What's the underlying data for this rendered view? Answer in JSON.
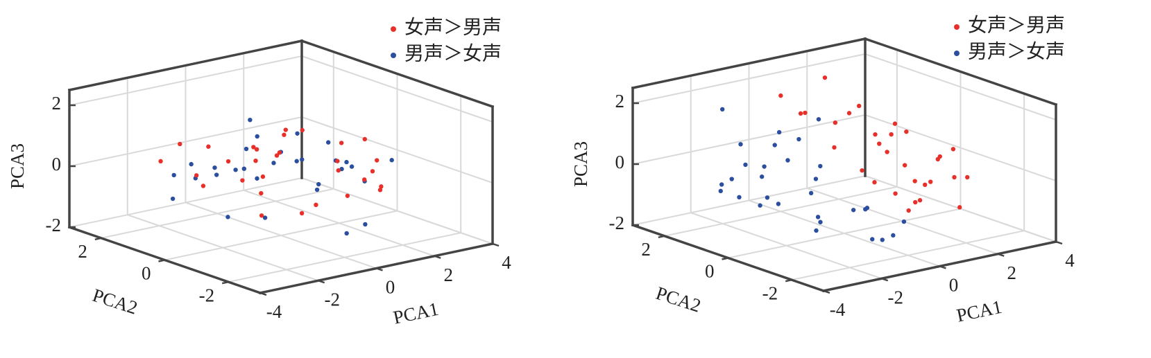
{
  "chart_data": [
    {
      "type": "scatter3d",
      "xlabel": "PCA1",
      "ylabel": "PCA2",
      "zlabel": "PCA3",
      "xlim": [
        -4,
        4
      ],
      "ylim": [
        -3,
        3
      ],
      "zlim": [
        -2,
        2.5
      ],
      "xticks": [
        -4,
        -2,
        0,
        2,
        4
      ],
      "yticks": [
        -2,
        0,
        2
      ],
      "zticks": [
        -2,
        0,
        2
      ],
      "grid": true,
      "legend": "upper right",
      "series": [
        {
          "name": "男声＞女声",
          "color": "#2b4e9f",
          "x": [
            -2.7,
            -2.0,
            -1.3,
            -0.6,
            0.2,
            0.7,
            1.3,
            1.9,
            2.5,
            -1.7,
            -0.9,
            0.4,
            1.0,
            1.6,
            -2.3,
            -0.3,
            0.6,
            1.2,
            2.2,
            -1.1,
            0.0,
            0.9,
            -2.5,
            1.5,
            -0.7,
            0.3,
            2.0,
            -1.5,
            0.8,
            -0.1
          ],
          "y": [
            0.9,
            -0.4,
            1.5,
            0.2,
            -1.0,
            1.8,
            -0.3,
            0.6,
            -1.2,
            -0.8,
            2.0,
            -1.7,
            0.4,
            -0.6,
            1.3,
            0.7,
            -2.1,
            1.1,
            0.1,
            -1.5,
            0.5,
            -0.9,
            -0.2,
            1.6,
            -1.3,
            2.3,
            -0.4,
            0.3,
            -1.9,
            1.0
          ],
          "z": [
            0.2,
            0.7,
            -0.4,
            1.3,
            0.0,
            -0.6,
            0.9,
            -1.1,
            0.4,
            0.5,
            -0.2,
            -1.4,
            1.0,
            0.3,
            -0.8,
            1.6,
            -1.0,
            0.1,
            -0.3,
            1.2,
            -1.6,
            0.6,
            0.8,
            -0.5,
            1.1,
            -0.9,
            0.0,
            -1.2,
            0.3,
            0.5
          ]
        },
        {
          "name": "女声＞男声",
          "color": "#e8302a",
          "x": [
            -2.5,
            -1.8,
            -1.2,
            -0.5,
            0,
            0.6,
            1.1,
            1.7,
            2.3,
            2.9,
            -2.2,
            -1.4,
            -0.8,
            0.3,
            0.9,
            1.5,
            2.1,
            -0.2,
            0.5,
            1.2,
            -1.0,
            1.9,
            2.6,
            -2.8,
            0.1,
            -1.6,
            0.8,
            1.4,
            -0.4,
            3.3
          ],
          "y": [
            1.5,
            0.8,
            -0.3,
            1.2,
            -1.1,
            0.4,
            -0.8,
            1.6,
            0.2,
            -0.5,
            -1.4,
            1.9,
            -0.6,
            0.9,
            -1.8,
            0.7,
            -1.2,
            2.1,
            -0.2,
            1.0,
            0.3,
            -0.9,
            0.6,
            0.1,
            -2.0,
            -0.7,
            1.3,
            -1.6,
            0.5,
            0.0
          ],
          "z": [
            0.4,
            -0.3,
            0.8,
            0.1,
            -0.6,
            1.2,
            0.2,
            -0.2,
            0.5,
            -0.8,
            -0.4,
            0.6,
            1.0,
            -1.0,
            0.3,
            0.9,
            -0.5,
            0.2,
            -1.3,
            0.7,
            -0.1,
            1.1,
            -0.3,
            0.5,
            0.0,
            1.4,
            -0.7,
            0.4,
            0.8,
            -0.2
          ]
        }
      ]
    },
    {
      "type": "scatter3d",
      "xlabel": "PCA1",
      "ylabel": "PCA2",
      "zlabel": "PCA3",
      "xlim": [
        -4,
        4
      ],
      "ylim": [
        -3,
        3
      ],
      "zlim": [
        -2,
        2.5
      ],
      "xticks": [
        -4,
        -2,
        0,
        2,
        4
      ],
      "yticks": [
        -2,
        0,
        2
      ],
      "zticks": [
        -2,
        0,
        2
      ],
      "grid": true,
      "legend": "upper right",
      "series": [
        {
          "name": "女声＞男声",
          "color": "#e8302a",
          "x": [
            0.2,
            0.6,
            1.0,
            1.4,
            1.8,
            2.2,
            2.6,
            3.0,
            3.4,
            0.4,
            0.8,
            1.2,
            1.6,
            2.0,
            2.4,
            2.8,
            3.2,
            0.0,
            0.5,
            1.1,
            1.7,
            2.3,
            2.9,
            -0.3,
            0.9,
            1.5,
            2.1,
            2.7,
            1.3,
            1.9
          ],
          "y": [
            0.5,
            -0.4,
            1.2,
            -1.1,
            0.3,
            -0.7,
            0.9,
            -0.2,
            0.1,
            1.6,
            -1.5,
            0.0,
            1.0,
            -1.8,
            0.6,
            -0.9,
            -0.5,
            2.0,
            -0.1,
            -0.6,
            1.4,
            0.2,
            0.7,
            1.1,
            -1.2,
            0.4,
            -0.3,
            -1.4,
            1.8,
            -0.8
          ],
          "z": [
            0.6,
            -0.3,
            1.0,
            -0.8,
            0.2,
            -0.5,
            0.4,
            -0.1,
            -0.2,
            1.3,
            -0.6,
            0.7,
            1.5,
            -0.9,
            0.9,
            -0.4,
            0.3,
            1.8,
            0.0,
            -0.7,
            1.1,
            -0.3,
            0.5,
            1.6,
            -1.0,
            0.8,
            -0.6,
            -0.2,
            2.2,
            -0.5
          ]
        },
        {
          "name": "男声＞女声",
          "color": "#2b4e9f",
          "x": [
            -3.4,
            -3.0,
            -2.6,
            -2.2,
            -1.8,
            -1.4,
            -1.0,
            -0.6,
            -0.2,
            0.3,
            -3.2,
            -2.8,
            -2.4,
            -2.0,
            -1.6,
            -1.2,
            -0.8,
            -0.4,
            0.1,
            -2.9,
            -2.5,
            -2.1,
            -1.7,
            -1.3,
            -0.9,
            -0.5,
            -3.6,
            -1.9,
            -1.1,
            -0.7
          ],
          "y": [
            0.2,
            0.8,
            -0.3,
            1.1,
            -0.6,
            0.5,
            -1.2,
            1.5,
            -0.9,
            -1.6,
            -0.5,
            1.3,
            0.4,
            -1.0,
            1.8,
            -0.2,
            0.7,
            -1.9,
            0.9,
            0.0,
            -1.4,
            0.6,
            -0.8,
            1.0,
            -1.7,
            0.3,
            0.6,
            2.1,
            -2.2,
            -1.3
          ],
          "z": [
            -0.2,
            0.1,
            -0.4,
            0.3,
            -0.1,
            0.5,
            -0.6,
            0.9,
            -0.8,
            -1.1,
            0.0,
            -0.3,
            0.2,
            -0.7,
            0.6,
            0.1,
            1.0,
            -1.3,
            1.4,
            -0.5,
            -0.9,
            0.4,
            -1.0,
            0.8,
            -1.4,
            0.2,
            -0.1,
            1.7,
            -1.2,
            -0.6
          ]
        }
      ]
    }
  ]
}
